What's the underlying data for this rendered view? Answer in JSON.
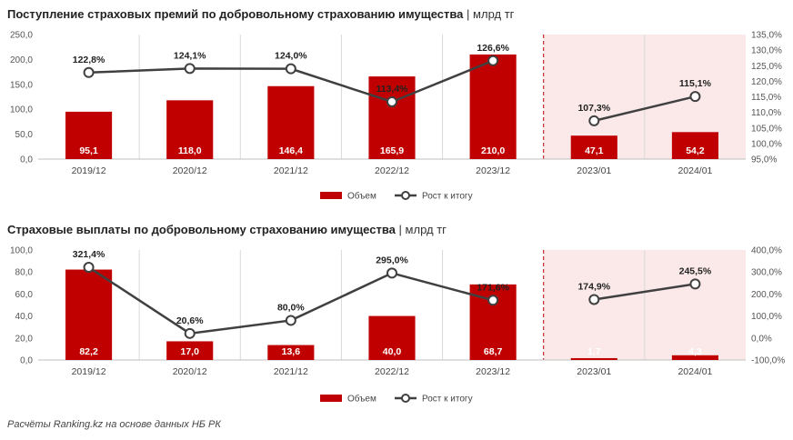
{
  "colors": {
    "bar": "#c00000",
    "line": "#404040",
    "marker_fill": "#ffffff",
    "shade": "#fbe9e9",
    "divider": "#c00000",
    "grid": "#d9d9d9"
  },
  "source": "Расчёты Ranking.kz на основе данных НБ РК",
  "chart_data": [
    {
      "type": "bar",
      "title": "Поступление страховых премий по добровольному страхованию имущества",
      "unit": "млрд тг",
      "categories": [
        "2019/12",
        "2020/12",
        "2021/12",
        "2022/12",
        "2023/12",
        "2023/01",
        "2024/01"
      ],
      "highlight_categories": [
        "2023/01",
        "2024/01"
      ],
      "series": [
        {
          "name": "Объем",
          "type": "bar",
          "axis": "left",
          "values": [
            95.1,
            118.0,
            146.4,
            165.9,
            210.0,
            47.1,
            54.2
          ]
        },
        {
          "name": "Рост к итогу",
          "type": "line",
          "axis": "right",
          "values": [
            122.8,
            124.1,
            124.0,
            113.4,
            126.6,
            107.3,
            115.1
          ],
          "connect_groups": [
            [
              0,
              4
            ],
            [
              5,
              6
            ]
          ]
        }
      ],
      "bar_labels": [
        "95,1",
        "118,0",
        "146,4",
        "165,9",
        "210,0",
        "47,1",
        "54,2"
      ],
      "line_labels": [
        "122,8%",
        "124,1%",
        "124,0%",
        "113,4%",
        "126,6%",
        "107,3%",
        "115,1%"
      ],
      "y_left": {
        "min": 0,
        "max": 250,
        "ticks": [
          0,
          50,
          100,
          150,
          200,
          250
        ],
        "tick_labels": [
          "0,0",
          "50,0",
          "100,0",
          "150,0",
          "200,0",
          "250,0"
        ]
      },
      "y_right": {
        "min": 95,
        "max": 135,
        "ticks": [
          95,
          100,
          105,
          110,
          115,
          120,
          125,
          130,
          135
        ],
        "tick_labels": [
          "95,0%",
          "100,0%",
          "105,0%",
          "110,0%",
          "115,0%",
          "120,0%",
          "125,0%",
          "130,0%",
          "135,0%"
        ]
      },
      "legend": [
        "Объем",
        "Рост к итогу"
      ],
      "legend_position": "bottom"
    },
    {
      "type": "bar",
      "title": "Страховые выплаты по добровольному страхованию имущества",
      "unit": "млрд тг",
      "categories": [
        "2019/12",
        "2020/12",
        "2021/12",
        "2022/12",
        "2023/12",
        "2023/01",
        "2024/01"
      ],
      "highlight_categories": [
        "2023/01",
        "2024/01"
      ],
      "series": [
        {
          "name": "Объем",
          "type": "bar",
          "axis": "left",
          "values": [
            82.2,
            17.0,
            13.6,
            40.0,
            68.7,
            1.7,
            4.3
          ]
        },
        {
          "name": "Рост к итогу",
          "type": "line",
          "axis": "right",
          "values": [
            321.4,
            20.6,
            80.0,
            295.0,
            171.6,
            174.9,
            245.5
          ],
          "connect_groups": [
            [
              0,
              4
            ],
            [
              5,
              6
            ]
          ]
        }
      ],
      "bar_labels": [
        "82,2",
        "17,0",
        "13,6",
        "40,0",
        "68,7",
        "1,7",
        "4,3"
      ],
      "line_labels": [
        "321,4%",
        "20,6%",
        "80,0%",
        "295,0%",
        "171,6%",
        "174,9%",
        "245,5%"
      ],
      "y_left": {
        "min": 0,
        "max": 100,
        "ticks": [
          0,
          20,
          40,
          60,
          80,
          100
        ],
        "tick_labels": [
          "0,0",
          "20,0",
          "40,0",
          "60,0",
          "80,0",
          "100,0"
        ]
      },
      "y_right": {
        "min": -100,
        "max": 400,
        "ticks": [
          -100,
          0,
          100,
          200,
          300,
          400
        ],
        "tick_labels": [
          "-100,0%",
          "0,0%",
          "100,0%",
          "200,0%",
          "300,0%",
          "400,0%"
        ]
      },
      "legend": [
        "Объем",
        "Рост к итогу"
      ],
      "legend_position": "bottom"
    }
  ]
}
